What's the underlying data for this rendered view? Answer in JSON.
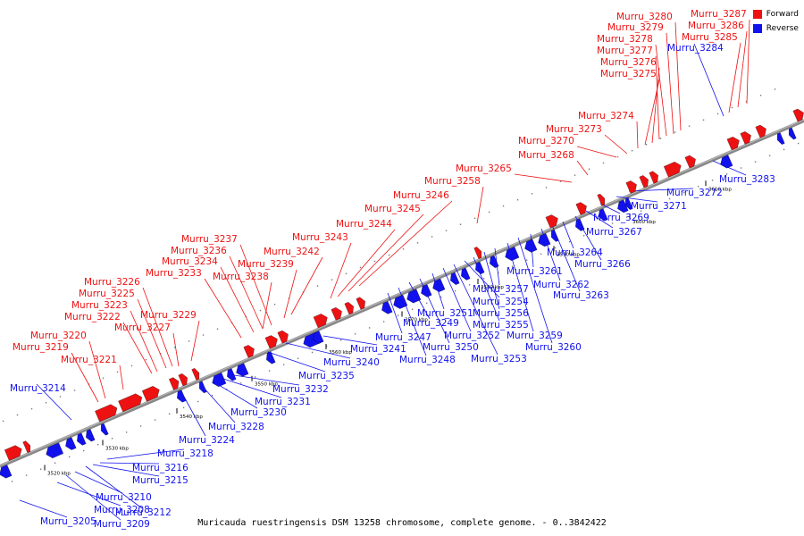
{
  "caption": "Muricauda ruestringensis DSM 13258 chromosome, complete genome. - 0..3842422",
  "legend": [
    {
      "label": "Forward",
      "color": "#ee1111"
    },
    {
      "label": "Reverse",
      "color": "#1111ee"
    }
  ],
  "colors": {
    "forward": "#ee1111",
    "reverse": "#1111ee",
    "backbone": "#888888"
  },
  "ticks": [
    {
      "label": "3520 kbp"
    },
    {
      "label": "3530 kbp"
    },
    {
      "label": "3540 kbp"
    },
    {
      "label": "3550 kbp"
    },
    {
      "label": "3560 kbp"
    },
    {
      "label": "3570 kbp"
    },
    {
      "label": "3580 kbp"
    },
    {
      "label": "3590 kbp"
    },
    {
      "label": "3600 kbp"
    },
    {
      "label": "3610 kbp"
    }
  ],
  "genes_forward": [
    {
      "label": "Murru_3219"
    },
    {
      "label": "Murru_3220"
    },
    {
      "label": "Murru_3221"
    },
    {
      "label": "Murru_3222"
    },
    {
      "label": "Murru_3223"
    },
    {
      "label": "Murru_3225"
    },
    {
      "label": "Murru_3226"
    },
    {
      "label": "Murru_3227"
    },
    {
      "label": "Murru_3229"
    },
    {
      "label": "Murru_3233"
    },
    {
      "label": "Murru_3234"
    },
    {
      "label": "Murru_3236"
    },
    {
      "label": "Murru_3237"
    },
    {
      "label": "Murru_3238"
    },
    {
      "label": "Murru_3239"
    },
    {
      "label": "Murru_3242"
    },
    {
      "label": "Murru_3243"
    },
    {
      "label": "Murru_3244"
    },
    {
      "label": "Murru_3245"
    },
    {
      "label": "Murru_3246"
    },
    {
      "label": "Murru_3258"
    },
    {
      "label": "Murru_3265"
    },
    {
      "label": "Murru_3268"
    },
    {
      "label": "Murru_3270"
    },
    {
      "label": "Murru_3273"
    },
    {
      "label": "Murru_3274"
    },
    {
      "label": "Murru_3275"
    },
    {
      "label": "Murru_3276"
    },
    {
      "label": "Murru_3277"
    },
    {
      "label": "Murru_3278"
    },
    {
      "label": "Murru_3279"
    },
    {
      "label": "Murru_3280"
    },
    {
      "label": "Murru_3285"
    },
    {
      "label": "Murru_3286"
    },
    {
      "label": "Murru_3287"
    }
  ],
  "genes_reverse": [
    {
      "label": "Murru_3205"
    },
    {
      "label": "Murru_3208"
    },
    {
      "label": "Murru_3209"
    },
    {
      "label": "Murru_3210"
    },
    {
      "label": "Murru_3212"
    },
    {
      "label": "Murru_3214"
    },
    {
      "label": "Murru_3215"
    },
    {
      "label": "Murru_3216"
    },
    {
      "label": "Murru_3218"
    },
    {
      "label": "Murru_3224"
    },
    {
      "label": "Murru_3228"
    },
    {
      "label": "Murru_3230"
    },
    {
      "label": "Murru_3231"
    },
    {
      "label": "Murru_3232"
    },
    {
      "label": "Murru_3235"
    },
    {
      "label": "Murru_3240"
    },
    {
      "label": "Murru_3241"
    },
    {
      "label": "Murru_3247"
    },
    {
      "label": "Murru_3248"
    },
    {
      "label": "Murru_3249"
    },
    {
      "label": "Murru_3250"
    },
    {
      "label": "Murru_3251"
    },
    {
      "label": "Murru_3252"
    },
    {
      "label": "Murru_3253"
    },
    {
      "label": "Murru_3254"
    },
    {
      "label": "Murru_3255"
    },
    {
      "label": "Murru_3256"
    },
    {
      "label": "Murru_3257"
    },
    {
      "label": "Murru_3259"
    },
    {
      "label": "Murru_3260"
    },
    {
      "label": "Murru_3261"
    },
    {
      "label": "Murru_3262"
    },
    {
      "label": "Murru_3263"
    },
    {
      "label": "Murru_3264"
    },
    {
      "label": "Murru_3266"
    },
    {
      "label": "Murru_3267"
    },
    {
      "label": "Murru_3269"
    },
    {
      "label": "Murru_3271"
    },
    {
      "label": "Murru_3272"
    },
    {
      "label": "Murru_3283"
    },
    {
      "label": "Murru_3284"
    }
  ]
}
